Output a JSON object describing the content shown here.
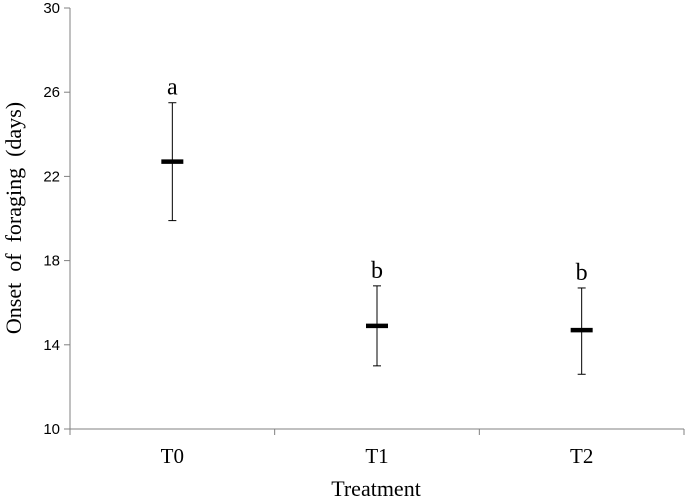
{
  "chart_data": {
    "type": "scatter",
    "title": "",
    "xlabel": "Treatment",
    "ylabel": "Onset  of  foraging  (days)",
    "categories": [
      "T0",
      "T1",
      "T2"
    ],
    "series": [
      {
        "values": [
          22.7,
          14.9,
          14.7
        ],
        "error_low": [
          19.9,
          13.0,
          12.6
        ],
        "error_high": [
          25.5,
          16.8,
          16.7
        ],
        "labels": [
          "a",
          "b",
          "b"
        ]
      }
    ],
    "yticks": [
      10,
      14,
      18,
      22,
      26,
      30
    ],
    "ylim": [
      10,
      30
    ],
    "grid": false,
    "legend": "none"
  }
}
